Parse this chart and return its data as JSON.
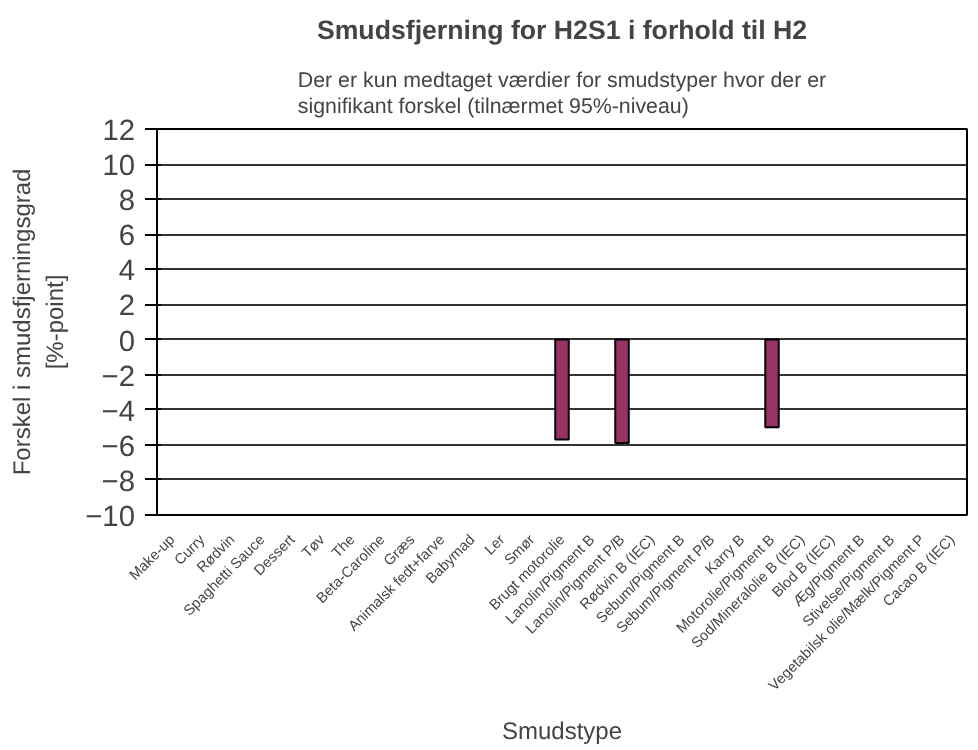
{
  "chart_data": {
    "type": "bar",
    "title": "Smudsfjerning for H2S1 i forhold til H2",
    "subtitle": "Der er kun medtaget værdier for smudstyper hvor der er\nsignifikant forskel (tilnærmet 95%-niveau)",
    "xlabel": "Smudstype",
    "ylabel": "Forskel i smudsfjerningsgrad\n[%-point]",
    "categories": [
      "Make-up",
      "Curry",
      "Rødvin",
      "Spaghetti Sauce",
      "Dessert",
      "Tøv",
      "The",
      "Beta-Caroline",
      "Græs",
      "Animalsk fedt+farve",
      "Babymad",
      "Ler",
      "Smør",
      "Brugt motorolie",
      "Lanolin/Pigment B",
      "Lanolin/Pigment P/B",
      "Rødvin B (IEC)",
      "Sebum/Pigment B",
      "Sebum/Pigment P/B",
      "Karry B",
      "Motorolie/Pigment B",
      "Sod/Mineralolie B (IEC)",
      "Blod B (IEC)",
      "Æg/Pigment B",
      "Stivelse/Pigment B",
      "Vegetabilsk olie/Mælk/Pigment P",
      "Cacao B (IEC)"
    ],
    "values": [
      null,
      null,
      null,
      null,
      null,
      null,
      null,
      null,
      null,
      null,
      null,
      null,
      null,
      -5.7,
      null,
      -5.9,
      null,
      null,
      null,
      null,
      -5.0,
      null,
      null,
      null,
      null,
      null,
      null
    ],
    "color": "#993366",
    "ylim": [
      -10,
      12
    ],
    "yticks": [
      -10,
      -8,
      -6,
      -4,
      -2,
      0,
      2,
      4,
      6,
      8,
      10,
      12
    ],
    "grid": "y"
  }
}
